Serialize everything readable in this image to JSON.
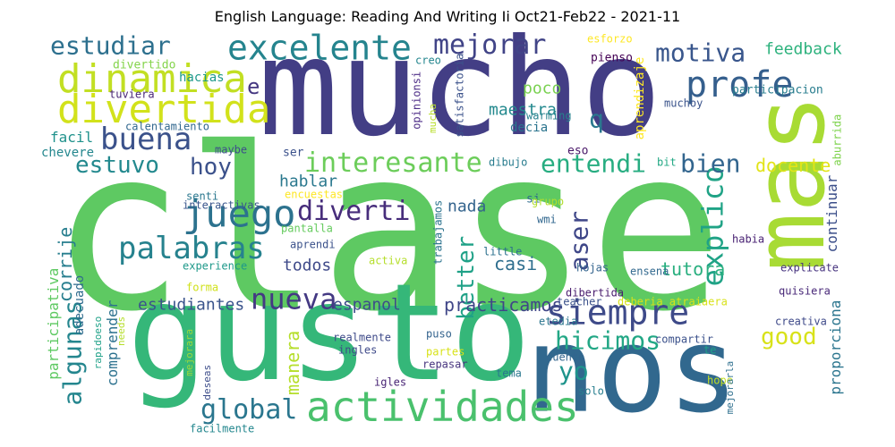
{
  "title": "English Language: Reading And Writing Ii Oct21-Feb22 - 2021-11",
  "words": [
    {
      "text": "clase",
      "color": "#5ec962"
    },
    {
      "text": "mucho",
      "color": "#433e85"
    },
    {
      "text": "gusto",
      "color": "#35b779"
    },
    {
      "text": "nos",
      "color": "#31688e"
    },
    {
      "text": "mas",
      "color": "#a8db34"
    },
    {
      "text": "actividades",
      "color": "#4ac16d"
    },
    {
      "text": "siempre",
      "color": "#3e4a89"
    },
    {
      "text": "dinamica",
      "color": "#c2df23"
    },
    {
      "text": "divertida",
      "color": "#d2e21b"
    },
    {
      "text": "excelente",
      "color": "#25848e"
    },
    {
      "text": "mejorar",
      "color": "#414487"
    },
    {
      "text": "profe",
      "color": "#355f8d"
    },
    {
      "text": "juego",
      "color": "#2c728e"
    },
    {
      "text": "palabras",
      "color": "#26828e"
    },
    {
      "text": "buena",
      "color": "#3b528b"
    },
    {
      "text": "interesante",
      "color": "#6ccd5a"
    },
    {
      "text": "global",
      "color": "#2a768e"
    },
    {
      "text": "nueva",
      "color": "#443983"
    },
    {
      "text": "hicimos",
      "color": "#22a785"
    },
    {
      "text": "explico",
      "color": "#20a386"
    },
    {
      "text": "estuvo",
      "color": "#23898e"
    },
    {
      "text": "estudiar",
      "color": "#2d708e"
    },
    {
      "text": "motiva",
      "color": "#39568c"
    },
    {
      "text": "diverti",
      "color": "#472d7b"
    },
    {
      "text": "entendi",
      "color": "#27ad81"
    },
    {
      "text": "algunas",
      "color": "#24868e"
    },
    {
      "text": "aser",
      "color": "#3f4788"
    },
    {
      "text": "better",
      "color": "#1fa187"
    },
    {
      "text": "hoy",
      "color": "#3b518b"
    },
    {
      "text": "bien",
      "color": "#32658e"
    },
    {
      "text": "yo",
      "color": "#1f948c"
    },
    {
      "text": "good",
      "color": "#d8e219"
    },
    {
      "text": "q",
      "color": "#2a788e"
    },
    {
      "text": "e",
      "color": "#453781"
    },
    {
      "text": "manera",
      "color": "#b5de2b"
    },
    {
      "text": "docente",
      "color": "#e2e418"
    },
    {
      "text": "corrije",
      "color": "#277e8e"
    },
    {
      "text": "casi",
      "color": "#2e6e8e"
    },
    {
      "text": "feedback",
      "color": "#2db27d"
    },
    {
      "text": "tutora",
      "color": "#29af7f"
    },
    {
      "text": "espanol",
      "color": "#3d4d8a"
    },
    {
      "text": "practicamos",
      "color": "#404688"
    },
    {
      "text": "estudiantes",
      "color": "#3a548c"
    },
    {
      "text": "proporciona",
      "color": "#2b758e"
    },
    {
      "text": "hablar",
      "color": "#2a788e"
    },
    {
      "text": "poco",
      "color": "#7ad151"
    },
    {
      "text": "maestra",
      "color": "#23898e"
    },
    {
      "text": "nada",
      "color": "#33638d"
    },
    {
      "text": "todos",
      "color": "#3e4989"
    },
    {
      "text": "continuar",
      "color": "#3c4f8a"
    },
    {
      "text": "comprender",
      "color": "#2c718e"
    },
    {
      "text": "participativa",
      "color": "#5ec962"
    },
    {
      "text": "aprendizaje",
      "color": "#fde725"
    },
    {
      "text": "facil",
      "color": "#20928c"
    },
    {
      "text": "adecuado",
      "color": "#2f6b8e"
    },
    {
      "text": "decia",
      "color": "#2b748e"
    },
    {
      "text": "chevere",
      "color": "#24878e"
    },
    {
      "text": "calentamiento",
      "color": "#31678e"
    },
    {
      "text": "tuviera",
      "color": "#482576"
    },
    {
      "text": "hacias",
      "color": "#1f998a"
    },
    {
      "text": "divertido",
      "color": "#84d44b"
    },
    {
      "text": "esforzo",
      "color": "#fde725"
    },
    {
      "text": "creo",
      "color": "#24868e"
    },
    {
      "text": "pienso",
      "color": "#440154"
    },
    {
      "text": "satisfactoria",
      "color": "#3b528b"
    },
    {
      "text": "opinionsi",
      "color": "#4e2d87"
    },
    {
      "text": "mucha",
      "color": "#b8de29"
    },
    {
      "text": "warming",
      "color": "#26818e"
    },
    {
      "text": "muchoy",
      "color": "#3a538b"
    },
    {
      "text": "participacion",
      "color": "#287d8e"
    },
    {
      "text": "aburrida",
      "color": "#7fd34e"
    },
    {
      "text": "maybe",
      "color": "#3d4e8a"
    },
    {
      "text": "ser",
      "color": "#3b518b"
    },
    {
      "text": "eso",
      "color": "#481668"
    },
    {
      "text": "bit",
      "color": "#22a884"
    },
    {
      "text": "dibujo",
      "color": "#287c8e"
    },
    {
      "text": "senti",
      "color": "#2a778e"
    },
    {
      "text": "interactivas",
      "color": "#39558c"
    },
    {
      "text": "encuestas",
      "color": "#fde725"
    },
    {
      "text": "trabajamos",
      "color": "#2c738e"
    },
    {
      "text": "si",
      "color": "#2f6c8e"
    },
    {
      "text": "grupo",
      "color": "#b2dd2d"
    },
    {
      "text": "wmi",
      "color": "#31678e"
    },
    {
      "text": "pantalla",
      "color": "#65cb5e"
    },
    {
      "text": "aprendi",
      "color": "#3b528b"
    },
    {
      "text": "little",
      "color": "#2c718e"
    },
    {
      "text": "habia",
      "color": "#482173"
    },
    {
      "text": "experience",
      "color": "#1f998a"
    },
    {
      "text": "activa",
      "color": "#b5de2b"
    },
    {
      "text": "hojas",
      "color": "#33638d"
    },
    {
      "text": "ensena",
      "color": "#31688e"
    },
    {
      "text": "explicate",
      "color": "#46337e"
    },
    {
      "text": "quisiera",
      "color": "#482878"
    },
    {
      "text": "forma",
      "color": "#d0e11c"
    },
    {
      "text": "dibertida",
      "color": "#481b6d"
    },
    {
      "text": "deberia atraiaera",
      "color": "#d8e219"
    },
    {
      "text": "creativa",
      "color": "#3e4989"
    },
    {
      "text": "teacher",
      "color": "#3b518b"
    },
    {
      "text": "etedia",
      "color": "#2b758e"
    },
    {
      "text": "needs",
      "color": "#b5de2b"
    },
    {
      "text": "rapidoeso",
      "color": "#1fa188"
    },
    {
      "text": "realmente",
      "color": "#3e4a89"
    },
    {
      "text": "puso",
      "color": "#33638d"
    },
    {
      "text": "mejorara",
      "color": "#9dd93b"
    },
    {
      "text": "ingles",
      "color": "#3e4989"
    },
    {
      "text": "partes",
      "color": "#d8e219"
    },
    {
      "text": "repasar",
      "color": "#46337e"
    },
    {
      "text": "compartir",
      "color": "#3b518b"
    },
    {
      "text": "te",
      "color": "#1fa188"
    },
    {
      "text": "cuento",
      "color": "#32658e"
    },
    {
      "text": "tema",
      "color": "#2a778e"
    },
    {
      "text": "deseas",
      "color": "#3d4d8a"
    },
    {
      "text": "igles",
      "color": "#482475"
    },
    {
      "text": "hope",
      "color": "#c2df23"
    },
    {
      "text": "solo",
      "color": "#277e8e"
    },
    {
      "text": "mejorarla",
      "color": "#2e6f8e"
    },
    {
      "text": "facilmente",
      "color": "#24878e"
    }
  ]
}
